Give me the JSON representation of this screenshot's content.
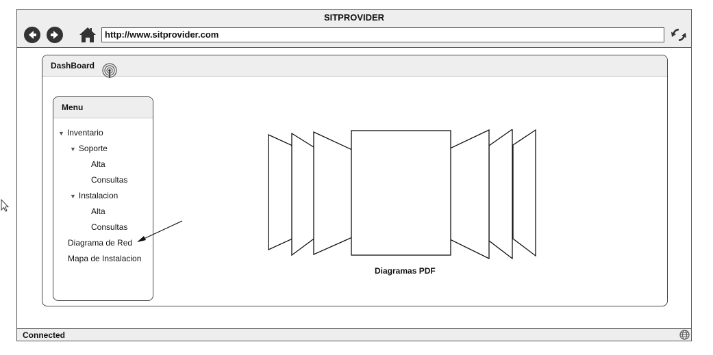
{
  "browser": {
    "title": "SITPROVIDER",
    "url": "http://www.sitprovider.com",
    "icons": {
      "back": "arrow-left-circle-icon",
      "forward": "arrow-right-circle-icon",
      "home": "home-icon",
      "refresh": "refresh-icon"
    }
  },
  "dashboard": {
    "title": "DashBoard",
    "icon": "antenna-icon"
  },
  "menu": {
    "title": "Menu",
    "items": [
      {
        "label": "Inventario",
        "expanded": true
      },
      {
        "label": "Soporte",
        "expanded": true
      },
      {
        "label": "Alta"
      },
      {
        "label": "Consultas"
      },
      {
        "label": "Instalacion",
        "expanded": true
      },
      {
        "label": "Alta"
      },
      {
        "label": "Consultas"
      },
      {
        "label": "Diagrama de Red"
      },
      {
        "label": "Mapa de Instalacion"
      }
    ]
  },
  "coverflow": {
    "caption": "Diagramas PDF"
  },
  "status": {
    "text": "Connected",
    "icon": "globe-icon"
  }
}
